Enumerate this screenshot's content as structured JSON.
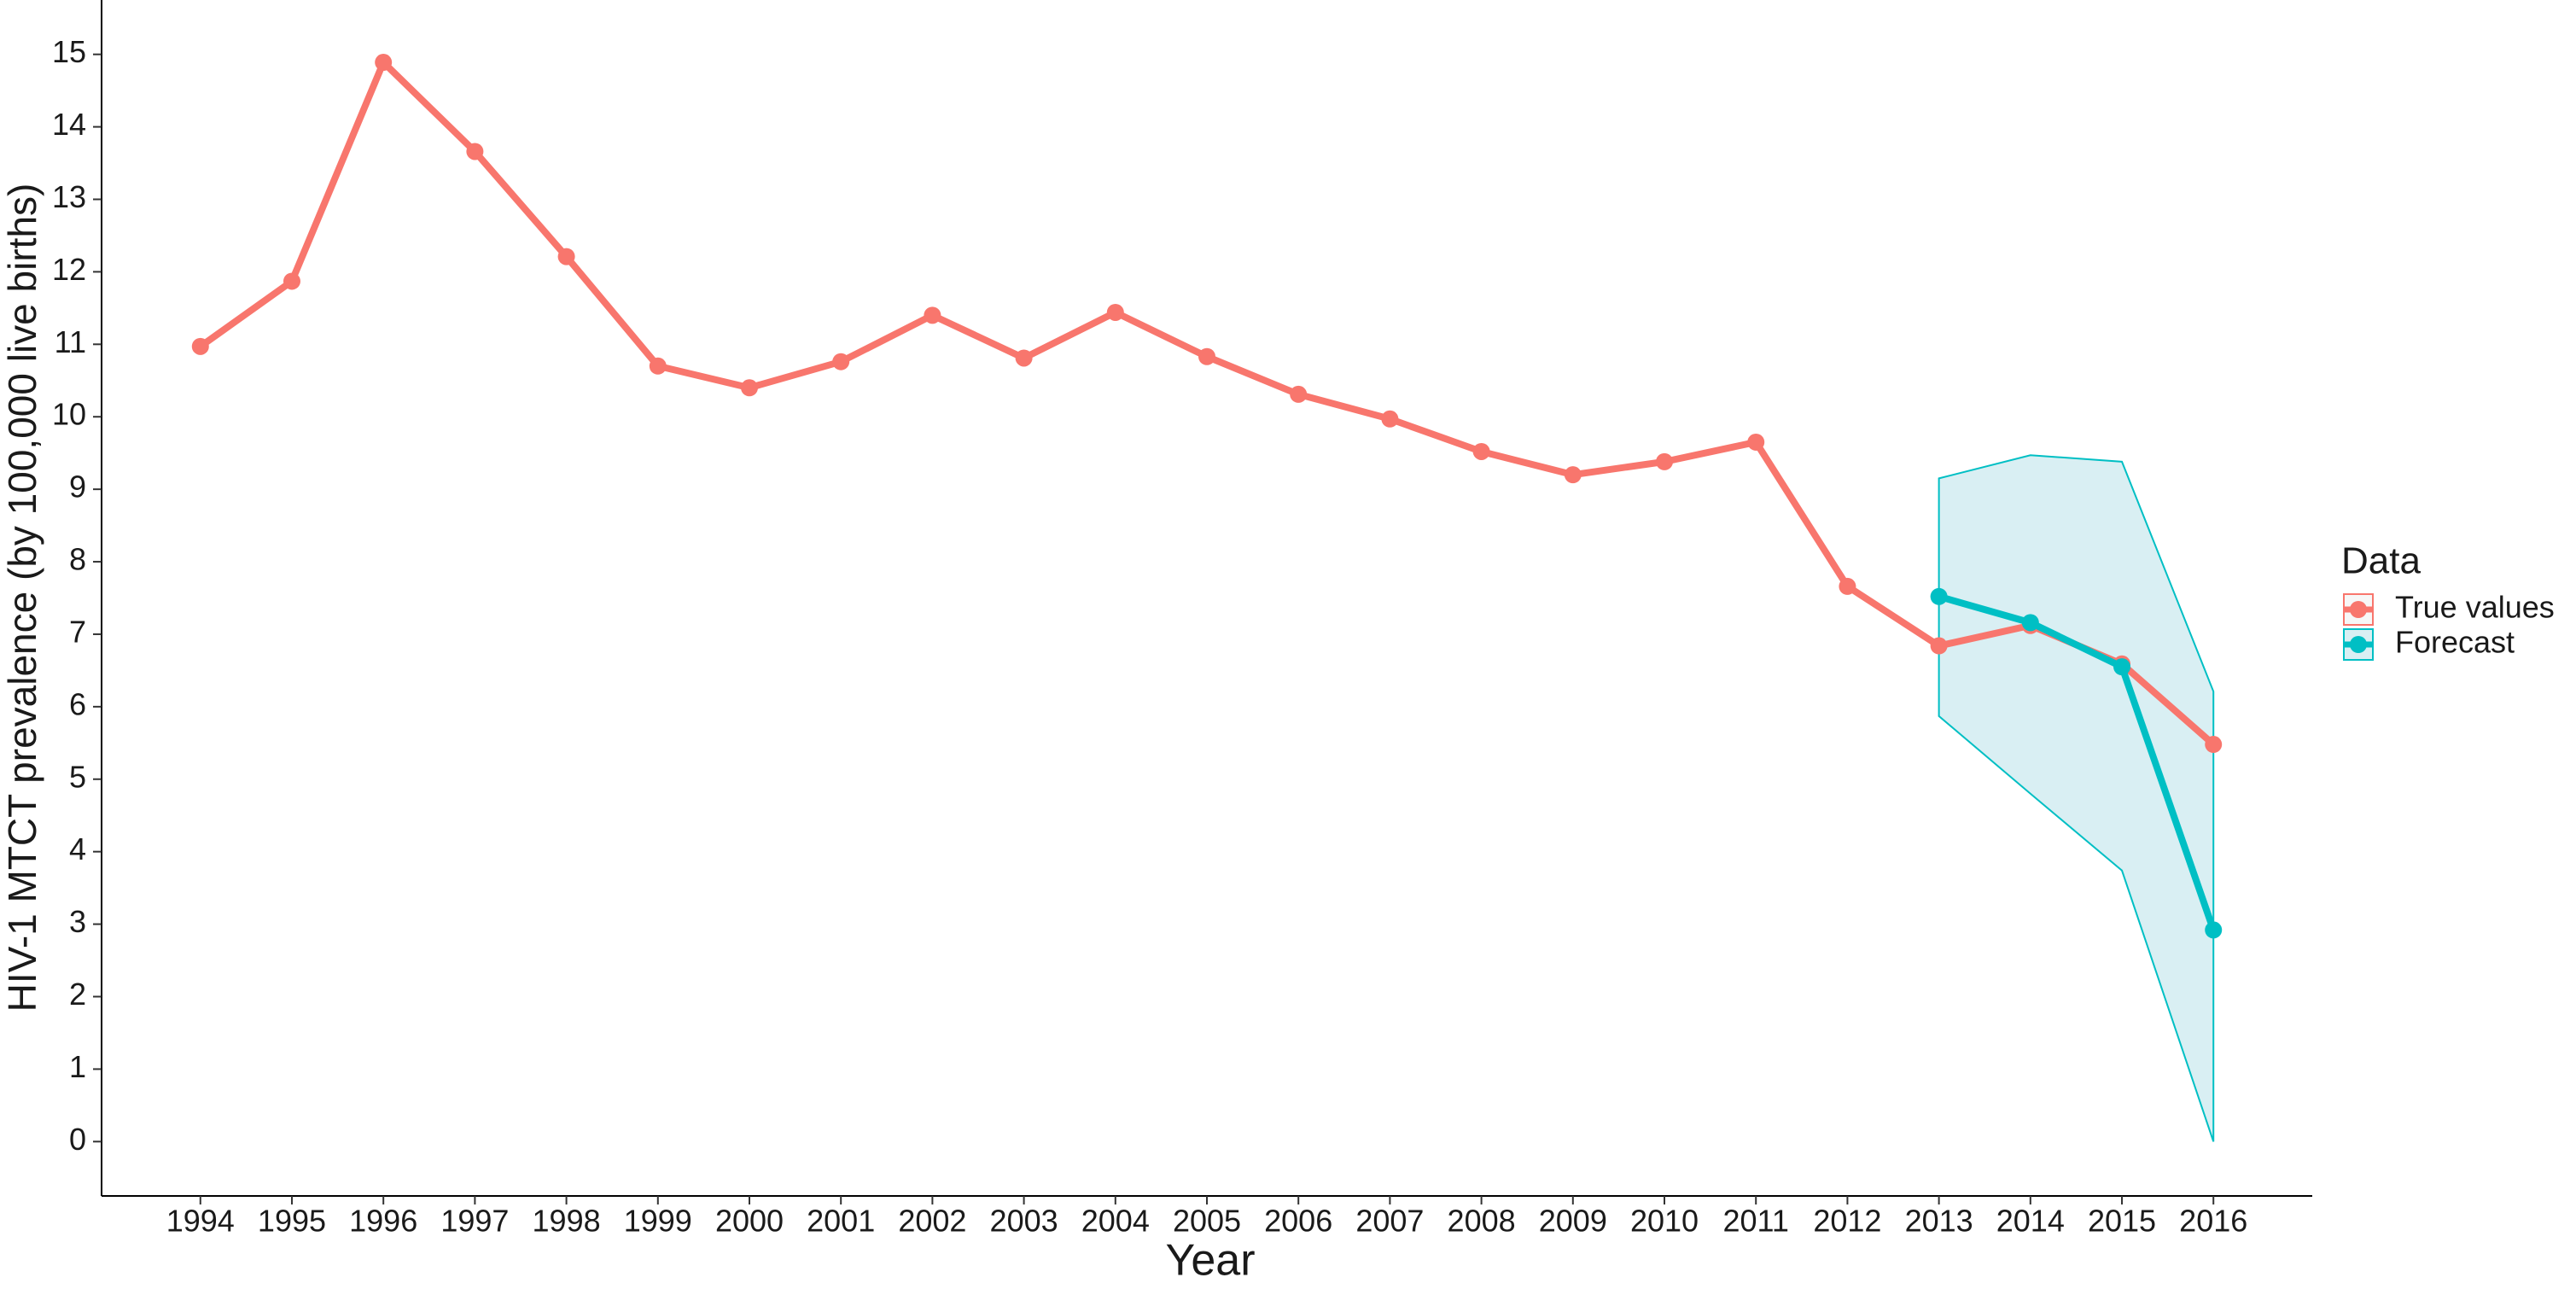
{
  "chart_data": {
    "type": "line",
    "x_label": "Year",
    "y_label": "HIV-1 MTCT prevalence (by 100,000 live births)",
    "categories": [
      "1994",
      "1995",
      "1996",
      "1997",
      "1998",
      "1999",
      "2000",
      "2001",
      "2002",
      "2003",
      "2004",
      "2005",
      "2006",
      "2007",
      "2008",
      "2009",
      "2010",
      "2011",
      "2012",
      "2013",
      "2014",
      "2015",
      "2016"
    ],
    "series": [
      {
        "name": "True values",
        "color": "#f8766d",
        "values": [
          10.97,
          11.87,
          14.89,
          13.66,
          12.21,
          10.7,
          10.4,
          10.76,
          11.4,
          10.81,
          11.44,
          10.83,
          10.31,
          9.97,
          9.52,
          9.2,
          9.38,
          9.65,
          7.66,
          6.84,
          7.12,
          6.59,
          5.48
        ]
      },
      {
        "name": "Forecast",
        "color": "#00bfc4",
        "band_color": "#d9eff3",
        "values": [
          null,
          null,
          null,
          null,
          null,
          null,
          null,
          null,
          null,
          null,
          null,
          null,
          null,
          null,
          null,
          null,
          null,
          null,
          null,
          7.52,
          7.16,
          6.55,
          2.92
        ],
        "lower": [
          null,
          null,
          null,
          null,
          null,
          null,
          null,
          null,
          null,
          null,
          null,
          null,
          null,
          null,
          null,
          null,
          null,
          null,
          null,
          5.87,
          4.8,
          3.74,
          0.0
        ],
        "upper": [
          null,
          null,
          null,
          null,
          null,
          null,
          null,
          null,
          null,
          null,
          null,
          null,
          null,
          null,
          null,
          null,
          null,
          null,
          null,
          9.15,
          9.47,
          9.38,
          6.21
        ]
      }
    ],
    "legend_title": "Data",
    "legend_position": "right",
    "ylim": [
      -0.75,
      15.75
    ],
    "yticks": [
      0,
      1,
      2,
      3,
      4,
      5,
      6,
      7,
      8,
      9,
      10,
      11,
      12,
      13,
      14,
      15
    ],
    "grid": false
  }
}
